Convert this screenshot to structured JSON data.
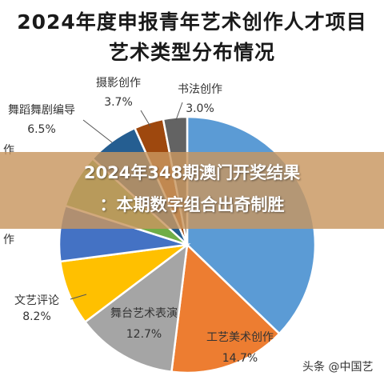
{
  "title_lines": [
    "2024年度申报青年艺术创作人才项目",
    "艺术类型分布情况"
  ],
  "banner": {
    "line1": "2024年348期澳门开奖结果",
    "line2": "：本期数字组合出奇制胜"
  },
  "watermark": "头条 @中国艺",
  "chart_data": {
    "type": "pie",
    "title": "2024年度申报青年艺术创作人才项目艺术类型分布情况",
    "slices": [
      {
        "label": "",
        "value": 37.1,
        "value_label": "",
        "color": "#5b9bd5"
      },
      {
        "label": "工艺美术创作",
        "value": 14.7,
        "value_label": "14.7%",
        "color": "#ed7d31"
      },
      {
        "label": "舞台艺术表演",
        "value": 12.7,
        "value_label": "12.7%",
        "color": "#a5a5a5"
      },
      {
        "label": "文艺评论",
        "value": 8.2,
        "value_label": "8.2%",
        "color": "#ffc000"
      },
      {
        "label": "",
        "value": 7.0,
        "value_label": "",
        "color": "#4472c4"
      },
      {
        "label": "",
        "value": 6.8,
        "value_label": "",
        "color": "#70ad47"
      },
      {
        "label": "舞蹈舞剧编导",
        "value": 6.5,
        "value_label": "6.5%",
        "color": "#255e91"
      },
      {
        "label": "摄影创作",
        "value": 3.7,
        "value_label": "3.7%",
        "color": "#9e480e"
      },
      {
        "label": "书法创作",
        "value": 3.0,
        "value_label": "3.0%",
        "color": "#636363"
      }
    ],
    "partial_labels": [
      "作",
      "作"
    ],
    "start_angle_deg": 0,
    "direction": "clockwise"
  }
}
